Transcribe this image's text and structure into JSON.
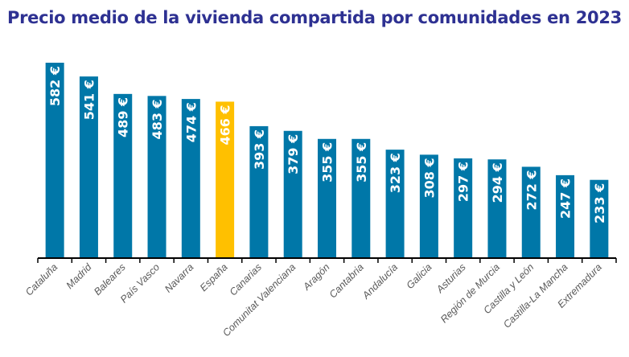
{
  "chart_data": {
    "type": "bar",
    "title": "Precio medio de la vivienda compartida por comunidades en 2023",
    "xlabel": "",
    "ylabel": "",
    "ylim": [
      0,
      582
    ],
    "grid": false,
    "categories": [
      "Cataluña",
      "Madrid",
      "Baleares",
      "País Vasco",
      "Navarra",
      "España",
      "Canarias",
      "Comunitat Valenciana",
      "Aragón",
      "Cantabria",
      "Andalucía",
      "Galicia",
      "Asturias",
      "Región de Murcia",
      "Castilla y León",
      "Castilla-La Mancha",
      "Extremadura"
    ],
    "values": [
      582,
      541,
      489,
      483,
      474,
      466,
      393,
      379,
      355,
      355,
      323,
      308,
      297,
      294,
      272,
      247,
      233
    ],
    "data_labels": [
      "582 €",
      "541 €",
      "489 €",
      "483 €",
      "474 €",
      "466 €",
      "393 €",
      "379 €",
      "355 €",
      "355 €",
      "323 €",
      "308 €",
      "297 €",
      "294 €",
      "272 €",
      "247 €",
      "233 €"
    ],
    "colors": {
      "default": "#0077a8",
      "highlight": "#ffc000",
      "highlight_category": "España"
    }
  }
}
